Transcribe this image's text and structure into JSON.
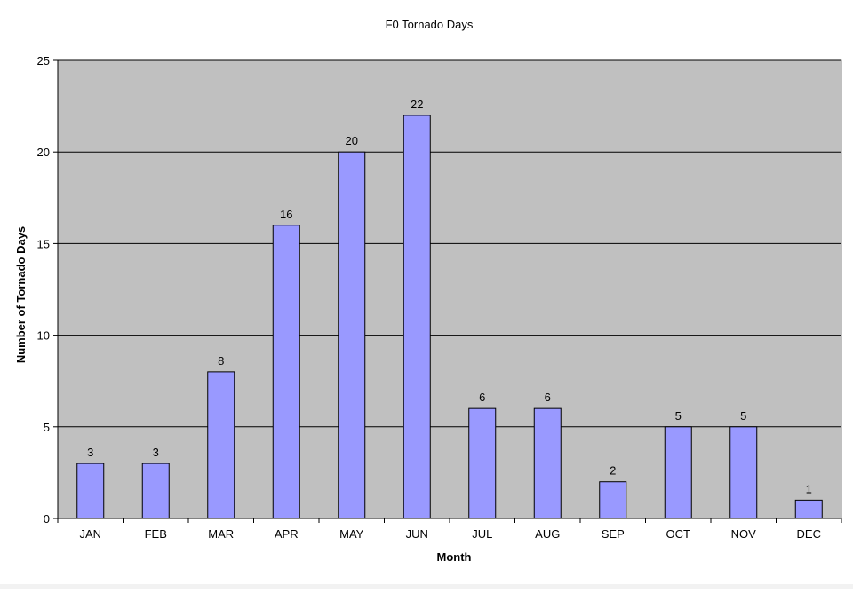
{
  "chart_data": {
    "type": "bar",
    "title": "F0 Tornado Days",
    "xlabel": "Month",
    "ylabel": "Number of Tornado Days",
    "categories": [
      "JAN",
      "FEB",
      "MAR",
      "APR",
      "MAY",
      "JUN",
      "JUL",
      "AUG",
      "SEP",
      "OCT",
      "NOV",
      "DEC"
    ],
    "values": [
      3,
      3,
      8,
      16,
      20,
      22,
      6,
      6,
      2,
      5,
      5,
      1
    ],
    "ylim": [
      0,
      25
    ],
    "yticks": [
      0,
      5,
      10,
      15,
      20,
      25
    ],
    "grid": true,
    "legend": "none",
    "data_labels": true,
    "colors": {
      "bar_fill": "#9999ff",
      "bar_stroke": "#000000",
      "plot_background": "#c0c0c0",
      "gridline": "#000000"
    }
  }
}
